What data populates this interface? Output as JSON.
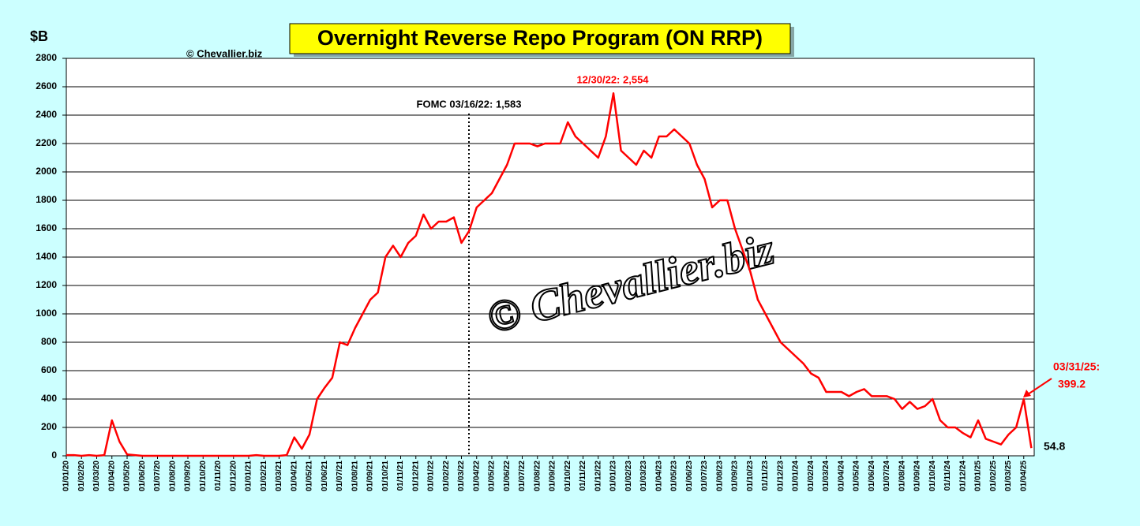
{
  "chart_data": {
    "type": "line",
    "title": "Overnight Reverse Repo Program (ON RRP)",
    "y_label": "$B",
    "copyright": "© Chevallier.biz",
    "watermark": "© Chevallier.biz",
    "annotations": [
      "FOMC 03/16/22: 1,583",
      "12/30/22: 2,554",
      "03/31/25:",
      "399.2",
      "54.8"
    ],
    "categories": [
      "01/01/20",
      null,
      "01/02/20",
      null,
      "01/03/20",
      null,
      "01/04/20",
      null,
      "01/05/20",
      null,
      "01/06/20",
      null,
      "01/07/20",
      null,
      "01/08/20",
      null,
      "01/09/20",
      null,
      "01/10/20",
      null,
      "01/11/20",
      null,
      "01/12/20",
      null,
      "01/01/21",
      null,
      "01/02/21",
      null,
      "01/03/21",
      null,
      "01/04/21",
      null,
      "01/05/21",
      null,
      "01/06/21",
      null,
      "01/07/21",
      null,
      "01/08/21",
      null,
      "01/09/21",
      null,
      "01/10/21",
      null,
      "01/11/21",
      null,
      "01/12/21",
      null,
      "01/01/22",
      null,
      "01/02/22",
      null,
      "01/03/22",
      null,
      "01/04/22",
      null,
      "01/05/22",
      null,
      "01/06/22",
      null,
      "01/07/22",
      null,
      "01/08/22",
      null,
      "01/09/22",
      null,
      "01/10/22",
      null,
      "01/11/22",
      null,
      "01/12/22",
      null,
      "01/01/23",
      null,
      "01/02/23",
      null,
      "01/03/23",
      null,
      "01/04/23",
      null,
      "01/05/23",
      null,
      "01/06/23",
      null,
      "01/07/23",
      null,
      "01/08/23",
      null,
      "01/09/23",
      null,
      "01/10/23",
      null,
      "01/11/23",
      null,
      "01/12/23",
      null,
      "01/01/24",
      null,
      "01/02/24",
      null,
      "01/03/24",
      null,
      "01/04/24",
      null,
      "01/05/24",
      null,
      "01/06/24",
      null,
      "01/07/24",
      null,
      "01/08/24",
      null,
      "01/09/24",
      null,
      "01/10/24",
      null,
      "01/11/24",
      null,
      "01/12/24",
      null,
      "01/01/25",
      null,
      "01/02/25",
      null,
      "01/03/25",
      null,
      "01/04/25",
      null
    ],
    "series": [
      {
        "name": "ON RRP",
        "color": "#ff0000",
        "values": [
          5,
          5,
          0,
          5,
          0,
          5,
          250,
          100,
          10,
          5,
          0,
          0,
          0,
          0,
          0,
          0,
          0,
          0,
          0,
          0,
          0,
          0,
          0,
          0,
          0,
          5,
          0,
          0,
          0,
          5,
          130,
          50,
          150,
          400,
          480,
          550,
          800,
          780,
          900,
          1000,
          1100,
          1150,
          1400,
          1480,
          1400,
          1500,
          1550,
          1700,
          1600,
          1650,
          1650,
          1680,
          1500,
          1583,
          1750,
          1800,
          1850,
          1950,
          2050,
          2200,
          2200,
          2200,
          2180,
          2200,
          2200,
          2200,
          2350,
          2250,
          2200,
          2150,
          2100,
          2250,
          2554,
          2150,
          2100,
          2050,
          2150,
          2100,
          2250,
          2250,
          2300,
          2250,
          2200,
          2050,
          1950,
          1750,
          1800,
          1800,
          1600,
          1450,
          1300,
          1100,
          1000,
          900,
          800,
          750,
          700,
          650,
          580,
          550,
          450,
          450,
          450,
          420,
          450,
          470,
          420,
          420,
          420,
          400,
          330,
          380,
          330,
          350,
          400,
          250,
          200,
          200,
          160,
          130,
          250,
          120,
          100,
          80,
          150,
          200,
          399.2,
          54.8
        ]
      }
    ],
    "ylim": [
      0,
      2800
    ],
    "yticks": [
      0,
      200,
      400,
      600,
      800,
      1000,
      1200,
      1400,
      1600,
      1800,
      2000,
      2200,
      2400,
      2600,
      2800
    ],
    "grid": true
  }
}
